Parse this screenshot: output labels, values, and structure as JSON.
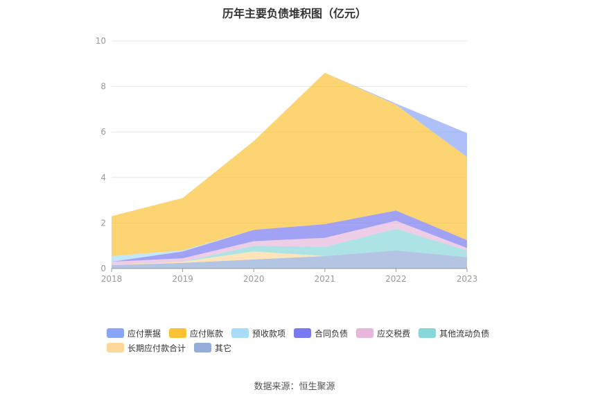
{
  "chart_data": {
    "type": "area",
    "title": "历年主要负债堆积图（亿元）",
    "categories": [
      "2018",
      "2019",
      "2020",
      "2021",
      "2022",
      "2023"
    ],
    "ylim": [
      0,
      10
    ],
    "yticks": [
      0,
      2,
      4,
      6,
      8,
      10
    ],
    "grid": true,
    "legend_position": "bottom",
    "stacked": true,
    "series": [
      {
        "name": "应付票据",
        "color": "#8aa5f5",
        "values": [
          0,
          0,
          0,
          0,
          0.05,
          1.05
        ]
      },
      {
        "name": "应付账款",
        "color": "#fbc235",
        "values": [
          1.75,
          2.3,
          3.9,
          6.65,
          4.65,
          3.65
        ]
      },
      {
        "name": "预收款项",
        "color": "#a8dcf8",
        "values": [
          0.25,
          0.05,
          0,
          0,
          0,
          0
        ]
      },
      {
        "name": "合同负债",
        "color": "#7a7af0",
        "values": [
          0,
          0.3,
          0.5,
          0.6,
          0.45,
          0.35
        ]
      },
      {
        "name": "应交税费",
        "color": "#e7b8dc",
        "values": [
          0.15,
          0.15,
          0.2,
          0.4,
          0.35,
          0.1
        ]
      },
      {
        "name": "其他流动负债",
        "color": "#8ad7d9",
        "values": [
          0,
          0,
          0.25,
          0.4,
          0.95,
          0.3
        ]
      },
      {
        "name": "长期应付款合计",
        "color": "#fdd89a",
        "values": [
          0,
          0.05,
          0.35,
          0,
          0,
          0
        ]
      },
      {
        "name": "其它",
        "color": "#94add8",
        "values": [
          0.15,
          0.25,
          0.4,
          0.55,
          0.8,
          0.5
        ]
      }
    ]
  },
  "source_text": "数据来源：恒生聚源"
}
